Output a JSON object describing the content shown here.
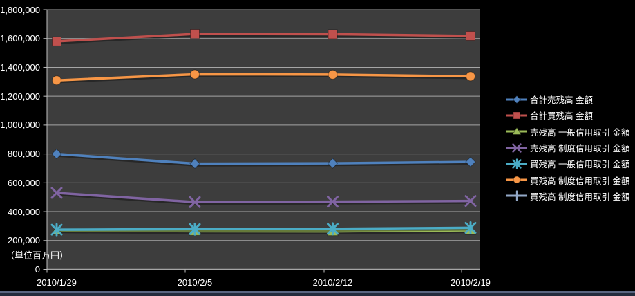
{
  "chart_data": {
    "type": "line",
    "categories": [
      "2010/1/29",
      "2010/2/5",
      "2010/2/12",
      "2010/2/19"
    ],
    "series": [
      {
        "name": "合計売残高 金額",
        "color": "#4F81BD",
        "marker": "diamond",
        "values": [
          800000,
          733000,
          735000,
          745000
        ]
      },
      {
        "name": "合計買残高 金額",
        "color": "#C0504D",
        "marker": "square",
        "values": [
          1580000,
          1632000,
          1630000,
          1618000
        ]
      },
      {
        "name": "売残高 一般信用取引 金額",
        "color": "#9BBB59",
        "marker": "triangle",
        "values": [
          270000,
          264000,
          263000,
          271000
        ]
      },
      {
        "name": "売残高 制度信用取引 金額",
        "color": "#8064A2",
        "marker": "x",
        "values": [
          530000,
          466000,
          469000,
          474000
        ]
      },
      {
        "name": "買残高 一般信用取引 金額",
        "color": "#4BACC6",
        "marker": "star",
        "values": [
          275000,
          279000,
          281000,
          288000
        ]
      },
      {
        "name": "買残高 制度信用取引 金額",
        "color": "#F79646",
        "marker": "circle",
        "values": [
          1310000,
          1352000,
          1350000,
          1338000
        ]
      },
      {
        "name": "買残高 制度信用取引 金額",
        "color": "#93A9C7",
        "marker": "plus",
        "values": null
      }
    ],
    "ylim": [
      0,
      1800000
    ],
    "ytick_step": 200000,
    "ytick_labels": [
      "0",
      "200,000",
      "400,000",
      "600,000",
      "800,000",
      "1,000,000",
      "1,200,000",
      "1,400,000",
      "1,600,000",
      "1,800,000"
    ],
    "grid": true,
    "legend_position": "right",
    "unit_label": "（単位百万円）",
    "title": "",
    "xlabel": "",
    "ylabel": "",
    "colors": {
      "page_bg": "#000000",
      "plot_bg": "#3D3D3D",
      "gridline": "#A6A6A6",
      "axis_line": "#BFBFBF",
      "text": "#FFFFFF",
      "bottom_strip": "#232B3C"
    }
  }
}
